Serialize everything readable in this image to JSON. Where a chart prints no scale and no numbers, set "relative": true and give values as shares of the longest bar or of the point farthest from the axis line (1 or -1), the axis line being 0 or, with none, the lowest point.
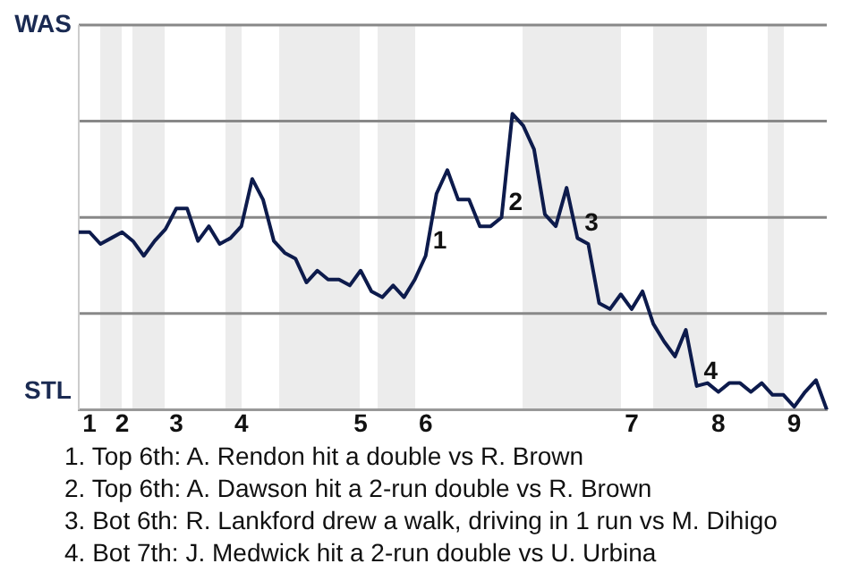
{
  "chart_data": {
    "type": "line",
    "relative": true,
    "categories": [
      null,
      "1",
      null,
      null,
      "2",
      null,
      null,
      null,
      null,
      "3",
      null,
      null,
      null,
      null,
      null,
      "4",
      null,
      null,
      null,
      null,
      null,
      null,
      null,
      null,
      null,
      null,
      "5",
      null,
      null,
      null,
      null,
      null,
      "6",
      null,
      null,
      null,
      null,
      null,
      null,
      null,
      null,
      null,
      null,
      null,
      null,
      null,
      null,
      null,
      null,
      null,
      null,
      "7",
      null,
      null,
      null,
      null,
      null,
      null,
      null,
      "8",
      null,
      null,
      null,
      null,
      null,
      null,
      "9",
      null,
      null,
      null
    ],
    "series": [
      {
        "color": "#0d1b4c",
        "values": [
          0.6,
          0.6,
          0.56,
          0.58,
          0.6,
          0.57,
          0.52,
          0.57,
          0.61,
          0.68,
          0.68,
          0.57,
          0.62,
          0.56,
          0.58,
          0.62,
          0.78,
          0.71,
          0.57,
          0.53,
          0.51,
          0.43,
          0.47,
          0.44,
          0.44,
          0.42,
          0.47,
          0.4,
          0.38,
          0.42,
          0.38,
          0.44,
          0.52,
          0.73,
          0.81,
          0.71,
          0.71,
          0.62,
          0.62,
          0.65,
          1,
          0.96,
          0.88,
          0.66,
          0.62,
          0.75,
          0.58,
          0.56,
          0.36,
          0.34,
          0.39,
          0.34,
          0.4,
          0.29,
          0.23,
          0.18,
          0.27,
          0.08,
          0.09,
          0.06,
          0.09,
          0.09,
          0.06,
          0.09,
          0.05,
          0.05,
          0.01,
          0.06,
          0.1,
          0
        ]
      }
    ],
    "annotations": [
      "WAS",
      "STL",
      "1",
      "2",
      "3",
      "4",
      "1. Top 6th: A. Rendon hit a double vs R. Brown",
      "2. Top 6th: A. Dawson hit a 2-run double vs R. Brown",
      "3. Bot 6th: R. Lankford drew a walk, driving in 1 run vs M. Dihigo",
      "4. Bot 7th: J. Medwick hit a 2-run double vs U. Urbina"
    ],
    "grid": "y",
    "legend": false,
    "marker": "none",
    "line_style": "solid"
  }
}
